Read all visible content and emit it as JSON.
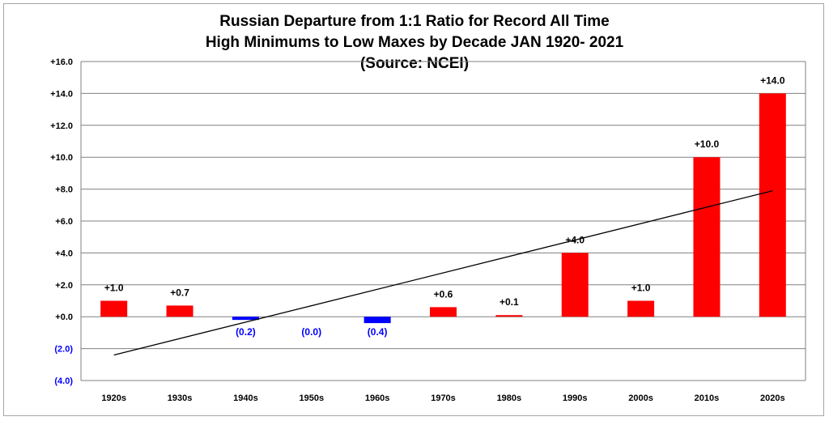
{
  "chart_data": {
    "type": "bar",
    "title_lines": [
      "Russian Departure from 1:1 Ratio for Record All Time",
      "High Minimums to Low Maxes by Decade JAN 1920- 2021",
      "(Source: NCEI)"
    ],
    "categories": [
      "1920s",
      "1930s",
      "1940s",
      "1950s",
      "1960s",
      "1970s",
      "1980s",
      "1990s",
      "2000s",
      "2010s",
      "2020s"
    ],
    "values": [
      1.0,
      0.7,
      -0.2,
      0.0,
      -0.4,
      0.6,
      0.1,
      4.0,
      1.0,
      10.0,
      14.0
    ],
    "data_labels": [
      "+1.0",
      "+0.7",
      "(0.2)",
      "(0.0)",
      "(0.4)",
      "+0.6",
      "+0.1",
      "+4.0",
      "+1.0",
      "+10.0",
      "+14.0"
    ],
    "ylim": [
      -4,
      16
    ],
    "yticks": [
      -4,
      -2,
      0,
      2,
      4,
      6,
      8,
      10,
      12,
      14,
      16
    ],
    "ytick_labels": [
      "(4.0)",
      "(2.0)",
      "+0.0",
      "+2.0",
      "+4.0",
      "+6.0",
      "+8.0",
      "+10.0",
      "+12.0",
      "+14.0",
      "+16.0"
    ],
    "grid": true,
    "trendline": {
      "type": "linear",
      "start": -2.4,
      "end": 7.9
    },
    "colors": {
      "positive": "#ff0000",
      "negative": "#0000ff",
      "negative_label": "#0000ff",
      "positive_label": "#000000",
      "grid": "#808080",
      "trend": "#000000"
    }
  }
}
